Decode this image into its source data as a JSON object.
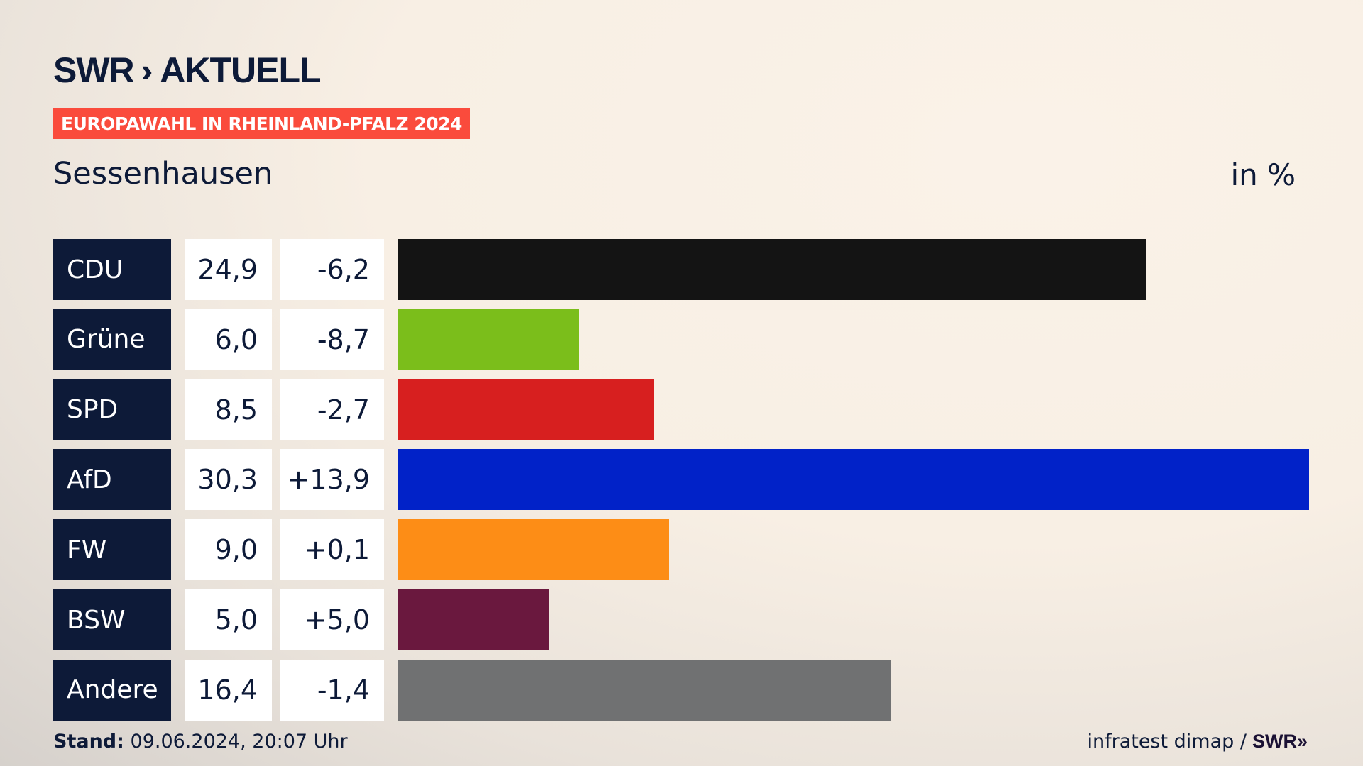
{
  "header": {
    "logo": "SWR AKTUELL",
    "logo_swr": "SWR",
    "logo_chevrons": "»",
    "logo_aktuell": "AKTUELL",
    "banner": "EUROPAWAHL IN RHEINLAND-PFALZ 2024",
    "place": "Sessenhausen",
    "unit": "in %"
  },
  "chart_data": {
    "type": "bar",
    "title": "Europawahl in Rheinland-Pfalz 2024 – Sessenhausen",
    "ylabel": "in %",
    "categories": [
      "CDU",
      "Grüne",
      "SPD",
      "AfD",
      "FW",
      "BSW",
      "Andere"
    ],
    "values": [
      24.9,
      6.0,
      8.5,
      30.3,
      9.0,
      5.0,
      16.4
    ],
    "value_labels": [
      "24,9",
      "6,0",
      "8,5",
      "30,3",
      "9,0",
      "5,0",
      "16,4"
    ],
    "changes": [
      "-6,2",
      "-8,7",
      "-2,7",
      "+13,9",
      "+0,1",
      "+5,0",
      "-1,4"
    ],
    "colors": [
      "#141414",
      "#7bbe1b",
      "#d71f1f",
      "#0122c8",
      "#fd8d16",
      "#6a183e",
      "#707172"
    ],
    "xlim": [
      0,
      30.3
    ]
  },
  "footer": {
    "stand_label": "Stand:",
    "stand_value": "09.06.2024, 20:07 Uhr",
    "source": "infratest dimap /",
    "source_logo": "SWR»"
  }
}
